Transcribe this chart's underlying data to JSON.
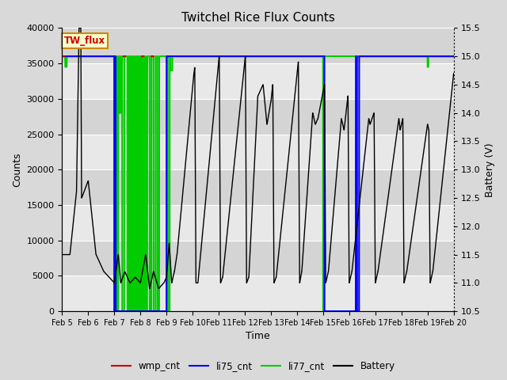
{
  "title": "Twitchel Rice Flux Counts",
  "ylabel_left": "Counts",
  "ylabel_right": "Battery (V)",
  "xlabel": "Time",
  "ylim_left": [
    0,
    40000
  ],
  "ylim_right": [
    10.5,
    15.5
  ],
  "yticks_left": [
    0,
    5000,
    10000,
    15000,
    20000,
    25000,
    30000,
    35000,
    40000
  ],
  "yticks_right": [
    10.5,
    11.0,
    11.5,
    12.0,
    12.5,
    13.0,
    13.5,
    14.0,
    14.5,
    15.0,
    15.5
  ],
  "xlim": [
    0,
    15
  ],
  "xtick_labels": [
    "Feb 5",
    "Feb 6",
    "Feb 7",
    "Feb 8",
    "Feb 9",
    "Feb 10",
    "Feb 11",
    "Feb 12",
    "Feb 13",
    "Feb 14",
    "Feb 15",
    "Feb 16",
    "Feb 17",
    "Feb 18",
    "Feb 19",
    "Feb 20"
  ],
  "xtick_positions": [
    0,
    1,
    2,
    3,
    4,
    5,
    6,
    7,
    8,
    9,
    10,
    11,
    12,
    13,
    14,
    15
  ],
  "fig_facecolor": "#d9d9d9",
  "plot_facecolor": "#e8e8e8",
  "grid_color": "#c0c0c0",
  "band_light": "#e8e8e8",
  "band_dark": "#d4d4d4",
  "li77_color": "#00cc00",
  "li75_color": "#0000ff",
  "wmp_color": "#cc0000",
  "batt_color": "#000000",
  "li77_level": 36000,
  "annotation_text": "TW_flux",
  "annotation_fg": "#cc0000",
  "annotation_bg": "#ffffcc",
  "annotation_border": "#cc8800",
  "legend_items": [
    "wmp_cnt",
    "li75_cnt",
    "li77_cnt",
    "Battery"
  ],
  "legend_colors": [
    "#cc0000",
    "#0000ff",
    "#00cc00",
    "#000000"
  ]
}
